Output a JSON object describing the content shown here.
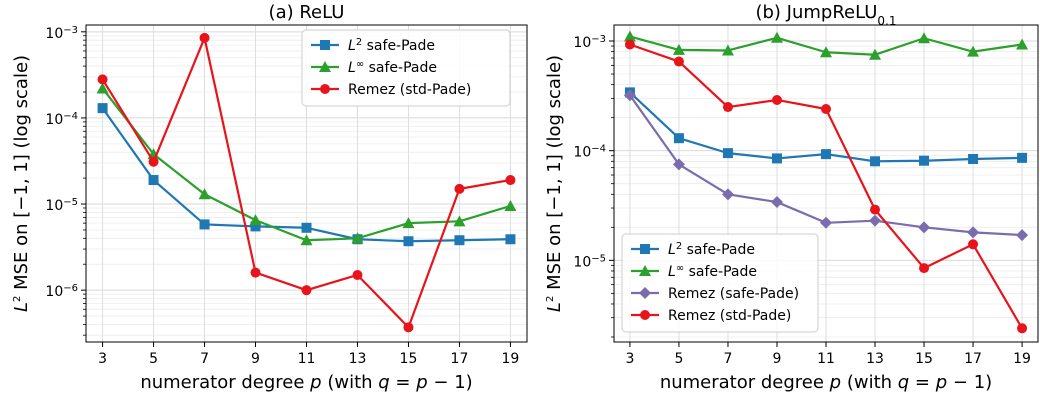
{
  "chart_data": [
    {
      "type": "line",
      "title": "(a) ReLU",
      "xlabel": "numerator degree p (with q = p − 1)",
      "ylabel": "L² MSE on [−1, 1] (log scale)",
      "yscale": "log",
      "grid": true,
      "legend_position": "top-right",
      "x": [
        3,
        5,
        7,
        9,
        11,
        13,
        15,
        17,
        19
      ],
      "x_ticks": [
        "3",
        "5",
        "7",
        "9",
        "11",
        "13",
        "15",
        "17",
        "19"
      ],
      "y_ticks": [
        {
          "value": 1e-06,
          "mant": "10",
          "exp": "−6"
        },
        {
          "value": 1e-05,
          "mant": "10",
          "exp": "−5"
        },
        {
          "value": 0.0001,
          "mant": "10",
          "exp": "−4"
        },
        {
          "value": 0.001,
          "mant": "10",
          "exp": "−3"
        }
      ],
      "ylim": [
        2.5e-07,
        0.0012
      ],
      "series": [
        {
          "name": "L² safe-Pade",
          "color": "#1f77b4",
          "marker": "square",
          "values": [
            0.00013,
            1.9e-05,
            5.8e-06,
            5.5e-06,
            5.3e-06,
            3.9e-06,
            3.7e-06,
            3.8e-06,
            3.9e-06
          ]
        },
        {
          "name": "L∞ safe-Pade",
          "color": "#2ca02c",
          "marker": "triangle",
          "values": [
            0.00022,
            3.8e-05,
            1.3e-05,
            6.5e-06,
            3.8e-06,
            4e-06,
            6e-06,
            6.3e-06,
            9.5e-06
          ]
        },
        {
          "name": "Remez (std-Pade)",
          "color": "#e8141c",
          "marker": "circle",
          "values": [
            0.00028,
            3.1e-05,
            0.00085,
            1.6e-06,
            1e-06,
            1.5e-06,
            3.7e-07,
            1.5e-05,
            1.9e-05
          ]
        }
      ]
    },
    {
      "type": "line",
      "title": "(b) JumpReLU",
      "title_sub": "0.1",
      "xlabel": "numerator degree p (with q = p − 1)",
      "ylabel": "L² MSE on [−1, 1] (log scale)",
      "yscale": "log",
      "grid": true,
      "legend_position": "bottom-left",
      "x": [
        3,
        5,
        7,
        9,
        11,
        13,
        15,
        17,
        19
      ],
      "x_ticks": [
        "3",
        "5",
        "7",
        "9",
        "11",
        "13",
        "15",
        "17",
        "19"
      ],
      "y_ticks": [
        {
          "value": 1e-05,
          "mant": "10",
          "exp": "−5"
        },
        {
          "value": 0.0001,
          "mant": "10",
          "exp": "−4"
        },
        {
          "value": 0.001,
          "mant": "10",
          "exp": "−3"
        }
      ],
      "ylim": [
        1.8e-06,
        0.0014
      ],
      "series": [
        {
          "name": "L² safe-Pade",
          "color": "#1f77b4",
          "marker": "square",
          "values": [
            0.00034,
            0.00013,
            9.5e-05,
            8.5e-05,
            9.3e-05,
            8e-05,
            8.1e-05,
            8.4e-05,
            8.6e-05
          ]
        },
        {
          "name": "L∞ safe-Pade",
          "color": "#2ca02c",
          "marker": "triangle",
          "values": [
            0.0011,
            0.00083,
            0.00082,
            0.00107,
            0.00079,
            0.00075,
            0.00106,
            0.0008,
            0.00093
          ]
        },
        {
          "name": "Remez (safe-Pade)",
          "color": "#7b6cb0",
          "marker": "diamond",
          "values": [
            0.00032,
            7.5e-05,
            4e-05,
            3.4e-05,
            2.2e-05,
            2.3e-05,
            2e-05,
            1.8e-05,
            1.7e-05
          ]
        },
        {
          "name": "Remez (std-Pade)",
          "color": "#e8141c",
          "marker": "circle",
          "values": [
            0.00093,
            0.00065,
            0.00025,
            0.00029,
            0.00024,
            2.9e-05,
            8.5e-06,
            1.4e-05,
            2.4e-06
          ]
        }
      ]
    }
  ]
}
